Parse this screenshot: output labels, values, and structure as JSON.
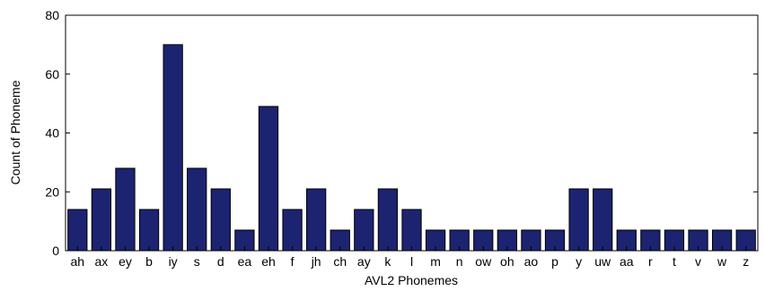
{
  "chart_data": {
    "type": "bar",
    "xlabel": "AVL2 Phonemes",
    "ylabel": "Count of Phoneme",
    "ylim": [
      0,
      80
    ],
    "yticks": [
      0,
      20,
      40,
      60,
      80
    ],
    "grid": false,
    "bar_color": "#1c2370",
    "categories": [
      "ah",
      "ax",
      "ey",
      "b",
      "iy",
      "s",
      "d",
      "ea",
      "eh",
      "f",
      "jh",
      "ch",
      "ay",
      "k",
      "l",
      "m",
      "n",
      "ow",
      "oh",
      "ao",
      "p",
      "y",
      "uw",
      "aa",
      "r",
      "t",
      "v",
      "w",
      "z"
    ],
    "values": [
      14,
      21,
      28,
      14,
      70,
      28,
      21,
      7,
      49,
      14,
      21,
      7,
      14,
      21,
      14,
      7,
      7,
      7,
      7,
      7,
      7,
      21,
      21,
      7,
      7,
      7,
      7,
      7,
      7
    ]
  }
}
